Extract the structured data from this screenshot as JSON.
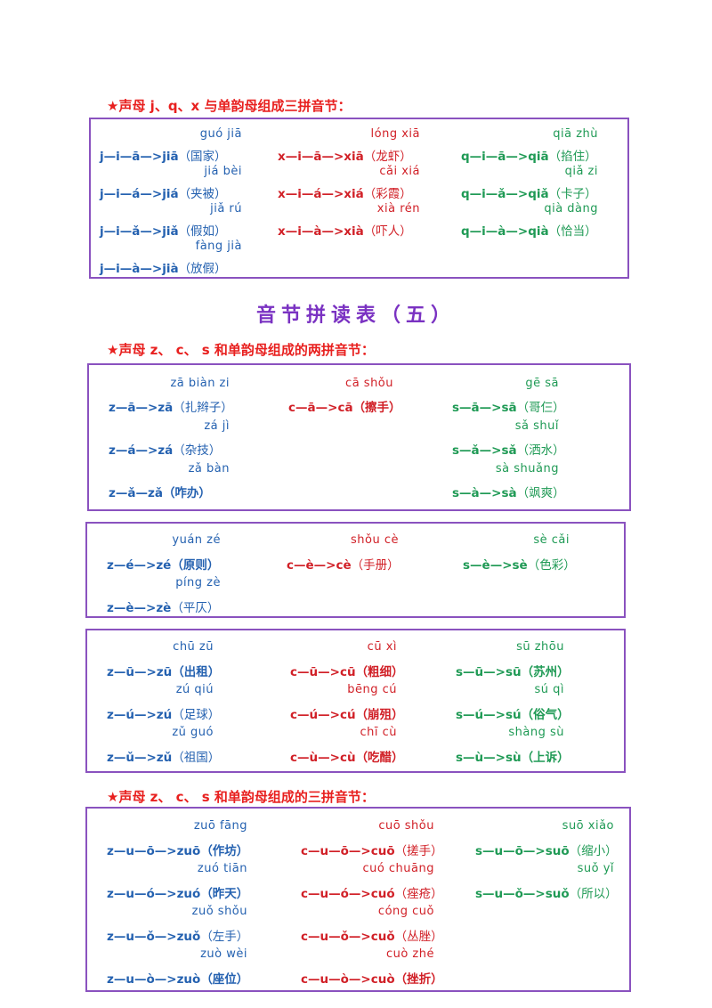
{
  "section1": {
    "heading_star": "★",
    "heading_text": "声母 j、q、x 与单韵母组成三拼音节：",
    "columns": [
      {
        "color": "#2461b0",
        "rows": [
          {
            "pinyin": "guó jiā",
            "spell": "j—i—ā—>",
            "result": "jiā",
            "word": "（国家）"
          },
          {
            "pinyin": "jiá bèi",
            "spell": "j—i—á—>",
            "result": "jiá",
            "word": "（夹被）"
          },
          {
            "pinyin": "jiǎ rú",
            "spell": "j—i—ǎ—>",
            "result": "jiǎ",
            "word": "（假如）"
          },
          {
            "pinyin": "fàng jià",
            "spell": "j—i—à—>",
            "result": "jià",
            "word": "（放假）"
          }
        ]
      },
      {
        "color": "#d12027",
        "rows": [
          {
            "pinyin": "lóng xiā",
            "spell": "x—i—ā—>",
            "result": "xiā",
            "word": "（龙虾）"
          },
          {
            "pinyin": "cǎi xiá",
            "spell": "x—i—á—>",
            "result": "xiá",
            "word": "（彩霞）"
          },
          {
            "pinyin": "xià rén",
            "spell": "x—i—à—>",
            "result": "xià",
            "word": "（吓人）"
          }
        ]
      },
      {
        "color": "#1f9a55",
        "rows": [
          {
            "pinyin": "qiā zhù",
            "spell": "q—i—ā—>",
            "result": "qiā",
            "word": "（掐住）"
          },
          {
            "pinyin": "qiǎ zi",
            "spell": "q—i—ǎ—>",
            "result": "qiǎ",
            "word": "（卡子）"
          },
          {
            "pinyin": "qià dàng",
            "spell": "q—i—à—>",
            "result": "qià",
            "word": "（恰当）"
          }
        ]
      }
    ]
  },
  "title": "音节拼读表（五）",
  "section2": {
    "heading_star": "★",
    "heading_text": "声母 z、 c、 s 和单韵母组成的两拼音节：",
    "box_a": [
      {
        "rows": [
          {
            "pinyin": "zā biàn zi",
            "spell": "z—ā—>",
            "result": "zā",
            "word": "（扎辫子）"
          },
          {
            "pinyin": "zá jì",
            "spell": "z—á—>",
            "result": "zá",
            "word": "（杂技）"
          },
          {
            "pinyin": "zǎ bàn",
            "spell": "z—ǎ—",
            "result": "zǎ",
            "word": "（咋办）",
            "bold": true
          }
        ]
      },
      {
        "rows": [
          {
            "pinyin": "cā shǒu",
            "spell": "c—ā—>",
            "result": "cā",
            "word": "（擦手）",
            "bold": true
          }
        ]
      },
      {
        "rows": [
          {
            "pinyin": "gē sā",
            "spell": "s—ā—>",
            "result": "sā",
            "word": "（哥仨）"
          },
          {
            "pinyin": "sǎ shuǐ",
            "spell": "s—ǎ—>",
            "result": "sǎ",
            "word": "（洒水）"
          },
          {
            "pinyin": "sà shuǎng",
            "spell": "s—à—>",
            "result": "sà",
            "word": "（飒爽）"
          }
        ]
      }
    ],
    "box_b": [
      {
        "rows": [
          {
            "pinyin": "yuán zé",
            "spell": "z—é—>",
            "result": "zé",
            "word": "（原则）",
            "bold": true
          },
          {
            "pinyin": "píng zè",
            "spell": "z—è—>",
            "result": "zè",
            "word": "（平仄）"
          }
        ]
      },
      {
        "rows": [
          {
            "pinyin": "shǒu cè",
            "spell": "c—è—>",
            "result": "cè",
            "word": "（手册）"
          }
        ]
      },
      {
        "rows": [
          {
            "pinyin": "sè cǎi",
            "spell": "s—è—>",
            "result": "sè",
            "word": "（色彩）"
          }
        ]
      }
    ],
    "box_c": [
      {
        "rows": [
          {
            "pinyin": "chū zū",
            "spell": "z—ū—>",
            "result": "zū",
            "word": "（出租）",
            "bold": true
          },
          {
            "pinyin": "zú qiú",
            "spell": "z—ú—>",
            "result": "zú",
            "word": "（足球）"
          },
          {
            "pinyin": "zǔ guó",
            "spell": "z—ǔ—>",
            "result": "zǔ",
            "word": "（祖国）"
          }
        ]
      },
      {
        "rows": [
          {
            "pinyin": "cū xì",
            "spell": "c—ū—>",
            "result": "cū",
            "word": "（粗细）",
            "bold": true
          },
          {
            "pinyin": "bēng cú",
            "spell": "c—ú—>",
            "result": "cú",
            "word": "（崩殂）",
            "bold": true
          },
          {
            "pinyin": "chī cù",
            "spell": "c—ù—>",
            "result": "cù",
            "word": "（吃醋）",
            "bold": true
          }
        ]
      },
      {
        "rows": [
          {
            "pinyin": "sū zhōu",
            "spell": "s—ū—>",
            "result": "sū",
            "word": "（苏州）",
            "bold": true
          },
          {
            "pinyin": "sú qì",
            "spell": "s—ú—>",
            "result": "sú",
            "word": "（俗气）",
            "bold": true
          },
          {
            "pinyin": "shàng sù",
            "spell": "s—ù—>",
            "result": "sù",
            "word": "（上诉）",
            "bold": true
          }
        ]
      }
    ]
  },
  "section3": {
    "heading_star": "★",
    "heading_text": "声母 z、 c、 s 和单韵母组成的三拼音节：",
    "columns": [
      {
        "rows": [
          {
            "pinyin": "zuō fāng",
            "spell": "z—u—ō—>",
            "result": "zuō",
            "word": "（作坊）",
            "bold": true
          },
          {
            "pinyin": "zuó tiān",
            "spell": "z—u—ó—>",
            "result": "zuó",
            "word": "（昨天）",
            "bold": true
          },
          {
            "pinyin": "zuǒ shǒu",
            "spell": "z—u—ǒ—>",
            "result": "zuǒ",
            "word": "（左手）"
          },
          {
            "pinyin": "zuò wèi",
            "spell": "z—u—ò—>",
            "result": "zuò",
            "word": "（座位）",
            "bold": true
          }
        ]
      },
      {
        "rows": [
          {
            "pinyin": "cuō shǒu",
            "spell": "c—u—ō—>",
            "result": "cuō",
            "word": "（搓手）"
          },
          {
            "pinyin": "cuó chuāng",
            "spell": "c—u—ó—>",
            "result": "cuó",
            "word": "（痤疮）"
          },
          {
            "pinyin": "cóng cuǒ",
            "spell": "c—u—ǒ—>",
            "result": "cuǒ",
            "word": "（丛脞）"
          },
          {
            "pinyin": "cuò zhé",
            "spell": "c—u—ò—>",
            "result": "cuò",
            "word": "（挫折）",
            "bold": true
          }
        ]
      },
      {
        "rows": [
          {
            "pinyin": "suō xiǎo",
            "spell": "s—u—ō—>",
            "result": "suō",
            "word": "（缩小）"
          },
          {
            "pinyin": "suǒ yǐ",
            "spell": "s—u—ǒ—>",
            "result": "suǒ",
            "word": "（所以）"
          }
        ]
      }
    ]
  }
}
